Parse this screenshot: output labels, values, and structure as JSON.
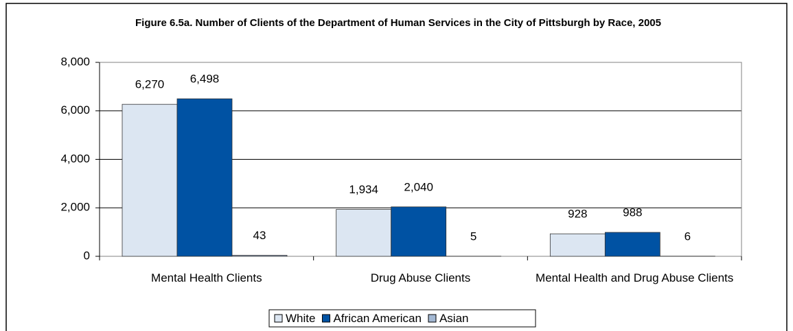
{
  "chart_data": {
    "type": "bar",
    "title": "Figure 6.5a. Number of Clients of the Department of Human Services in the City of Pittsburgh by Race, 2005",
    "categories": [
      "Mental Health Clients",
      "Drug Abuse Clients",
      "Mental Health and Drug Abuse Clients"
    ],
    "series": [
      {
        "name": "White",
        "color": "#dce6f2",
        "values": [
          6270,
          1934,
          928
        ],
        "value_labels": [
          "6,270",
          "1,934",
          "928"
        ]
      },
      {
        "name": "African American",
        "color": "#0052a3",
        "values": [
          6498,
          2040,
          988
        ],
        "value_labels": [
          "6,498",
          "2,040",
          "988"
        ]
      },
      {
        "name": "Asian",
        "color": "#a3b8d3",
        "values": [
          43,
          5,
          6
        ],
        "value_labels": [
          "43",
          "5",
          "6"
        ]
      }
    ],
    "ylim": [
      0,
      8000
    ],
    "yticks": [
      0,
      {
        "value": 2000,
        "label": "2,000"
      },
      {
        "value": 4000,
        "label": "4,000"
      },
      {
        "value": 6000,
        "label": "6,000"
      },
      {
        "value": 8000,
        "label": "8,000"
      }
    ],
    "grid": true,
    "legend": "bottom"
  }
}
